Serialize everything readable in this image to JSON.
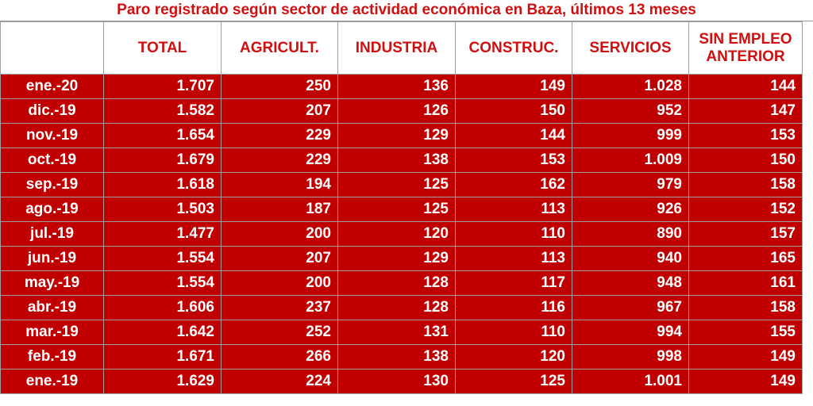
{
  "header": {
    "title": "Paro registrado según sector de actividad económica en Baza, últimos 13 meses"
  },
  "table": {
    "columns": [
      "TOTAL",
      "AGRICULT.",
      "INDUSTRIA",
      "CONSTRUC.",
      "SERVICIOS",
      "SIN EMPLEO ANTERIOR"
    ],
    "rows": [
      [
        "ene.-20",
        "1.707",
        "250",
        "136",
        "149",
        "1.028",
        "144"
      ],
      [
        "dic.-19",
        "1.582",
        "207",
        "126",
        "150",
        "952",
        "147"
      ],
      [
        "nov.-19",
        "1.654",
        "229",
        "129",
        "144",
        "999",
        "153"
      ],
      [
        "oct.-19",
        "1.679",
        "229",
        "138",
        "153",
        "1.009",
        "150"
      ],
      [
        "sep.-19",
        "1.618",
        "194",
        "125",
        "162",
        "979",
        "158"
      ],
      [
        "ago.-19",
        "1.503",
        "187",
        "125",
        "113",
        "926",
        "152"
      ],
      [
        "jul.-19",
        "1.477",
        "200",
        "120",
        "110",
        "890",
        "157"
      ],
      [
        "jun.-19",
        "1.554",
        "207",
        "129",
        "113",
        "940",
        "165"
      ],
      [
        "may.-19",
        "1.554",
        "200",
        "128",
        "117",
        "948",
        "161"
      ],
      [
        "abr.-19",
        "1.606",
        "237",
        "128",
        "116",
        "967",
        "158"
      ],
      [
        "mar.-19",
        "1.642",
        "252",
        "131",
        "110",
        "994",
        "155"
      ],
      [
        "feb.-19",
        "1.671",
        "266",
        "138",
        "120",
        "998",
        "149"
      ],
      [
        "ene.-19",
        "1.629",
        "224",
        "130",
        "125",
        "1.001",
        "149"
      ]
    ]
  }
}
